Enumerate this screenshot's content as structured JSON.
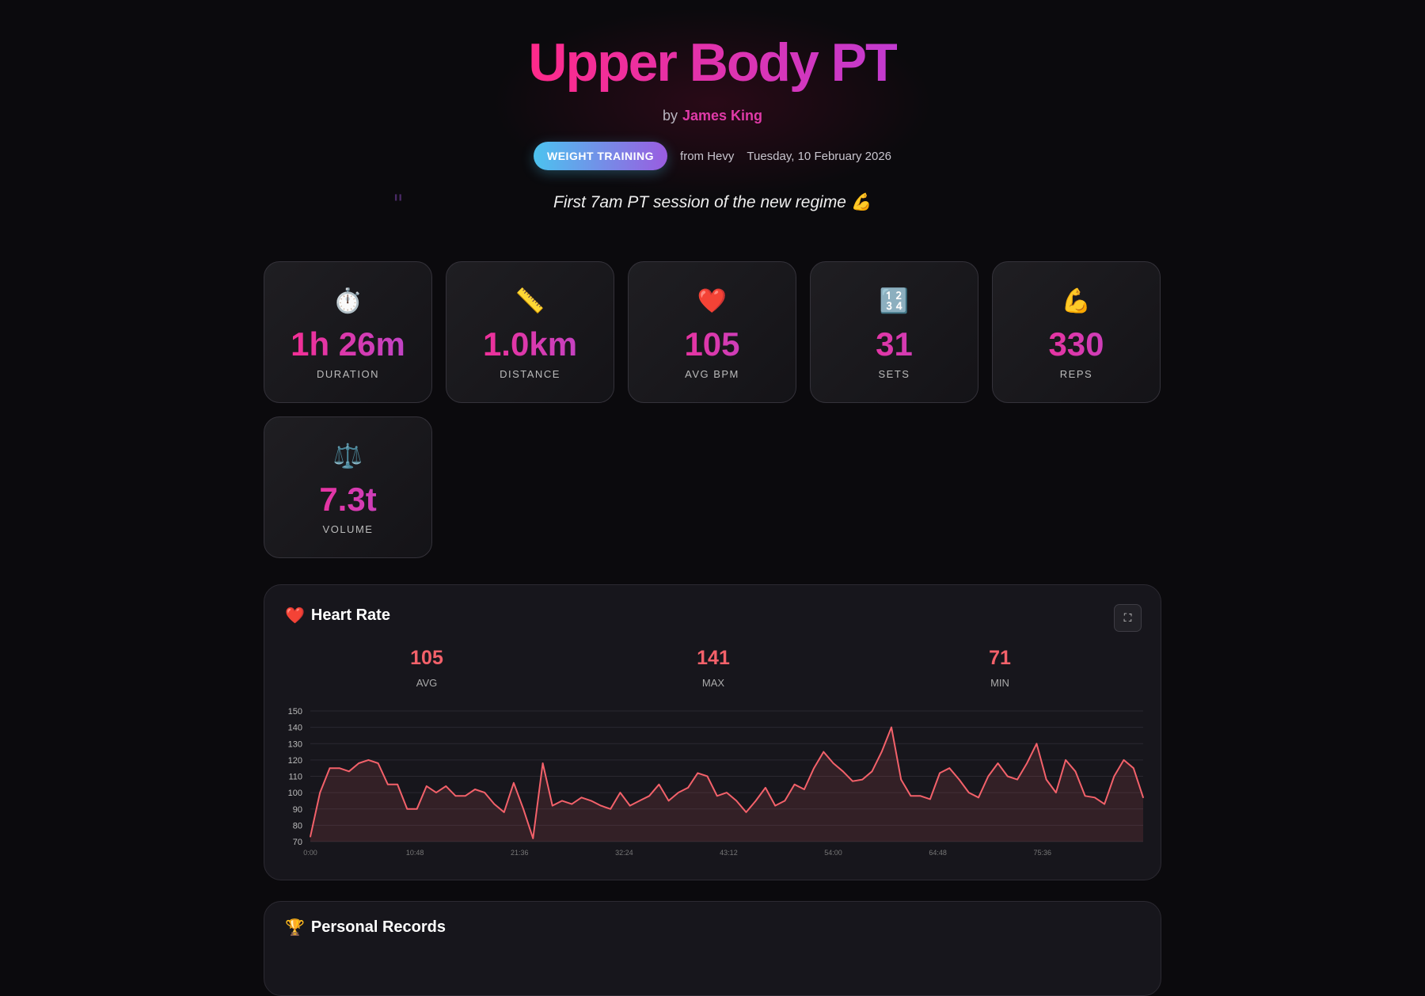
{
  "header": {
    "title": "Upper Body PT",
    "by_label": "by",
    "author": "James King",
    "badge": "WEIGHT TRAINING",
    "source": "from Hevy",
    "date": "Tuesday, 10 February 2026",
    "quote": "First 7am PT session of the new regime 💪",
    "quote_mark": "\""
  },
  "stats": [
    {
      "icon": "stopwatch-icon",
      "glyph": "⏱️",
      "value": "1h 26m",
      "label": "DURATION"
    },
    {
      "icon": "ruler-icon",
      "glyph": "📏",
      "value": "1.0km",
      "label": "DISTANCE"
    },
    {
      "icon": "heart-icon",
      "glyph": "❤️",
      "value": "105",
      "label": "AVG BPM"
    },
    {
      "icon": "numbers-icon",
      "glyph": "🔢",
      "value": "31",
      "label": "SETS"
    },
    {
      "icon": "flexed-biceps-icon",
      "glyph": "💪",
      "value": "330",
      "label": "REPS"
    },
    {
      "icon": "balance-scale-icon",
      "glyph": "⚖️",
      "value": "7.3t",
      "label": "VOLUME"
    }
  ],
  "heart_rate": {
    "title": "Heart Rate",
    "icon": "❤️",
    "summary": [
      {
        "value": "105",
        "label": "AVG"
      },
      {
        "value": "141",
        "label": "MAX"
      },
      {
        "value": "71",
        "label": "MIN"
      }
    ]
  },
  "personal_records": {
    "title": "Personal Records",
    "icon": "🏆"
  },
  "chart_data": {
    "type": "area",
    "line_color": "#f3616a",
    "ylim": [
      70,
      150
    ],
    "yticks": [
      150,
      140,
      130,
      120,
      110,
      100,
      90,
      80,
      70
    ],
    "xlim_minutes": [
      0,
      86
    ],
    "xticks": [
      "0:00",
      "10:48",
      "21:36",
      "32:24",
      "43:12",
      "54:00",
      "64:48",
      "75:36"
    ],
    "grid": true,
    "x_minutes_step": 1,
    "values": [
      73,
      100,
      115,
      115,
      113,
      118,
      120,
      118,
      105,
      105,
      90,
      90,
      104,
      100,
      104,
      98,
      98,
      102,
      100,
      93,
      88,
      106,
      90,
      72,
      118,
      92,
      95,
      93,
      97,
      95,
      92,
      90,
      100,
      92,
      95,
      98,
      105,
      95,
      100,
      103,
      112,
      110,
      98,
      100,
      95,
      88,
      95,
      103,
      92,
      95,
      105,
      102,
      115,
      125,
      118,
      113,
      107,
      108,
      113,
      125,
      140,
      108,
      98,
      98,
      96,
      112,
      115,
      108,
      100,
      97,
      110,
      118,
      110,
      108,
      118,
      130,
      108,
      100,
      120,
      113,
      98,
      97,
      93,
      110,
      120,
      115,
      97
    ]
  }
}
